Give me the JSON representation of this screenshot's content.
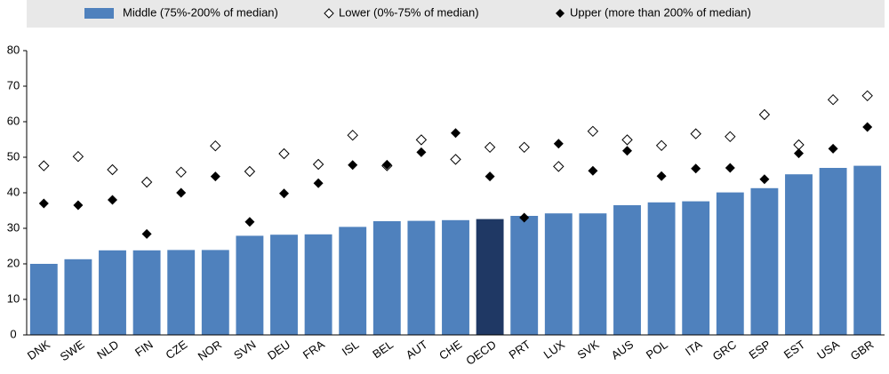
{
  "chart_data": {
    "type": "bar-dot",
    "categories": [
      "DNK",
      "SWE",
      "NLD",
      "FIN",
      "CZE",
      "NOR",
      "SVN",
      "DEU",
      "FRA",
      "ISL",
      "BEL",
      "AUT",
      "CHE",
      "OECD",
      "PRT",
      "LUX",
      "SVK",
      "AUS",
      "POL",
      "ITA",
      "GRC",
      "ESP",
      "EST",
      "USA",
      "GBR"
    ],
    "series": [
      {
        "name": "Middle (75%-200% of median)",
        "kind": "bar",
        "color": "#4f81bd",
        "point_colors": [
          "#4f81bd",
          "#4f81bd",
          "#4f81bd",
          "#4f81bd",
          "#4f81bd",
          "#4f81bd",
          "#4f81bd",
          "#4f81bd",
          "#4f81bd",
          "#4f81bd",
          "#4f81bd",
          "#4f81bd",
          "#4f81bd",
          "#1f3864",
          "#4f81bd",
          "#4f81bd",
          "#4f81bd",
          "#4f81bd",
          "#4f81bd",
          "#4f81bd",
          "#4f81bd",
          "#4f81bd",
          "#4f81bd",
          "#4f81bd",
          "#4f81bd"
        ],
        "values": [
          20,
          21.3,
          23.8,
          23.8,
          23.9,
          23.9,
          27.9,
          28.2,
          28.3,
          30.4,
          32,
          32.1,
          32.3,
          32.6,
          33.5,
          34.2,
          34.2,
          36.5,
          37.3,
          37.6,
          40.1,
          41.3,
          45.2,
          47,
          47.6
        ]
      },
      {
        "name": "Lower (0%-75% of median)",
        "kind": "hollow-diamond",
        "color": "#000000",
        "values": [
          47.6,
          50.2,
          46.5,
          43,
          45.8,
          53.2,
          46,
          51,
          48,
          56.2,
          47.6,
          54.9,
          49.4,
          52.8,
          52.8,
          47.4,
          57.3,
          54.9,
          53.3,
          56.6,
          55.8,
          62,
          53.5,
          66.2,
          67.3
        ]
      },
      {
        "name": "Upper (more than 200% of median)",
        "kind": "diamond",
        "color": "#000000",
        "values": [
          37,
          36.5,
          38,
          28.4,
          40,
          44.6,
          31.8,
          39.8,
          42.7,
          47.8,
          47.9,
          51.4,
          56.8,
          44.6,
          33,
          53.8,
          46.2,
          51.8,
          44.7,
          46.8,
          47,
          43.8,
          51.1,
          52.4,
          58.5
        ]
      }
    ],
    "ylim": [
      0,
      80
    ],
    "yticks": [
      0,
      10,
      20,
      30,
      40,
      50,
      60,
      70,
      80
    ],
    "grid": false
  }
}
